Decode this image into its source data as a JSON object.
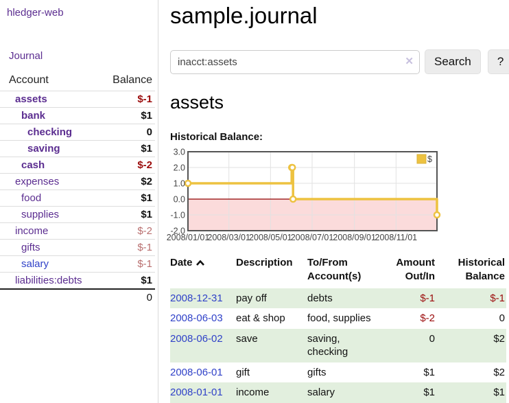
{
  "sidebar": {
    "brand": "hledger-web",
    "journal_link": "Journal",
    "accounts_table": {
      "headers": {
        "account": "Account",
        "balance": "Balance"
      },
      "rows": [
        {
          "name": "assets",
          "depth": 1,
          "bold": true,
          "color": "purple",
          "balance": "$-1",
          "balance_style": "neg-bold"
        },
        {
          "name": "bank",
          "depth": 2,
          "bold": true,
          "color": "purple",
          "balance": "$1",
          "balance_style": "pos-bold"
        },
        {
          "name": "checking",
          "depth": 3,
          "bold": true,
          "color": "purple",
          "balance": "0",
          "balance_style": "pos-bold"
        },
        {
          "name": "saving",
          "depth": 3,
          "bold": true,
          "color": "purple",
          "balance": "$1",
          "balance_style": "pos-bold"
        },
        {
          "name": "cash",
          "depth": 2,
          "bold": true,
          "color": "purple",
          "balance": "$-2",
          "balance_style": "neg-bold"
        },
        {
          "name": "expenses",
          "depth": 1,
          "bold": false,
          "color": "purple",
          "balance": "$2",
          "balance_style": "pos-bold"
        },
        {
          "name": "food",
          "depth": 2,
          "bold": false,
          "color": "purple",
          "balance": "$1",
          "balance_style": "pos-bold"
        },
        {
          "name": "supplies",
          "depth": 2,
          "bold": false,
          "color": "purple",
          "balance": "$1",
          "balance_style": "pos-bold"
        },
        {
          "name": "income",
          "depth": 1,
          "bold": false,
          "color": "purple",
          "balance": "$-2",
          "balance_style": "neg-light"
        },
        {
          "name": "gifts",
          "depth": 2,
          "bold": false,
          "color": "purple",
          "balance": "$-1",
          "balance_style": "neg-light"
        },
        {
          "name": "salary",
          "depth": 2,
          "bold": false,
          "color": "blue",
          "balance": "$-1",
          "balance_style": "neg-light"
        },
        {
          "name": "liabilities:debts",
          "depth": 1,
          "bold": false,
          "color": "purple",
          "balance": "$1",
          "balance_style": "pos-bold"
        }
      ],
      "total": "0"
    }
  },
  "header": {
    "title": "sample.journal"
  },
  "search": {
    "value": "inacct:assets",
    "clear_icon": "✕",
    "button_label": "Search",
    "help_label": "?"
  },
  "account_page": {
    "heading": "assets",
    "chart_label": "Historical Balance:"
  },
  "chart_data": {
    "type": "line",
    "title": "Historical Balance",
    "steps": true,
    "series": [
      {
        "name": "$",
        "color": "#edc240",
        "x": [
          "2008-01-01",
          "2008-06-01",
          "2008-06-02",
          "2008-06-03",
          "2008-12-31"
        ],
        "values": [
          1,
          2,
          2,
          0,
          -1
        ]
      }
    ],
    "ylim": [
      -2,
      3
    ],
    "yticks": [
      "3.0",
      "2.0",
      "1.0",
      "0.0",
      "-1.0",
      "-2.0"
    ],
    "ytick_values": [
      3,
      2,
      1,
      0,
      -1,
      -2
    ],
    "xticks": [
      "2008/01/01",
      "2008/03/01",
      "2008/05/01",
      "2008/07/01",
      "2008/09/01",
      "2008/11/01"
    ],
    "xtick_dates": [
      "2008-01-01",
      "2008-03-01",
      "2008-05-01",
      "2008-07-01",
      "2008-09-01",
      "2008-11-01"
    ],
    "x_range": [
      "2008-01-01",
      "2008-12-31"
    ],
    "grid": true,
    "legend": "$",
    "legend_position": "top-right",
    "negative_fill": "#fbdbdb",
    "zero_line_color": "#8f0000",
    "border_color": "#545454",
    "grid_color": "#e2e2e2"
  },
  "transactions": {
    "headers": [
      {
        "label": "Date",
        "sorted": "asc"
      },
      {
        "label": "Description"
      },
      {
        "label": "To/From Account(s)"
      },
      {
        "label": "Amount Out/In"
      },
      {
        "label": "Historical Balance"
      }
    ],
    "rows": [
      {
        "date": "2008-12-31",
        "description": "pay off",
        "accounts": "debts",
        "amount": "$-1",
        "balance": "$-1"
      },
      {
        "date": "2008-06-03",
        "description": "eat & shop",
        "accounts": "food, supplies",
        "amount": "$-2",
        "balance": "0"
      },
      {
        "date": "2008-06-02",
        "description": "save",
        "accounts": "saving, checking",
        "amount": "0",
        "balance": "$2"
      },
      {
        "date": "2008-06-01",
        "description": "gift",
        "accounts": "gifts",
        "amount": "$1",
        "balance": "$2"
      },
      {
        "date": "2008-01-01",
        "description": "income",
        "accounts": "salary",
        "amount": "$1",
        "balance": "$1"
      }
    ]
  }
}
